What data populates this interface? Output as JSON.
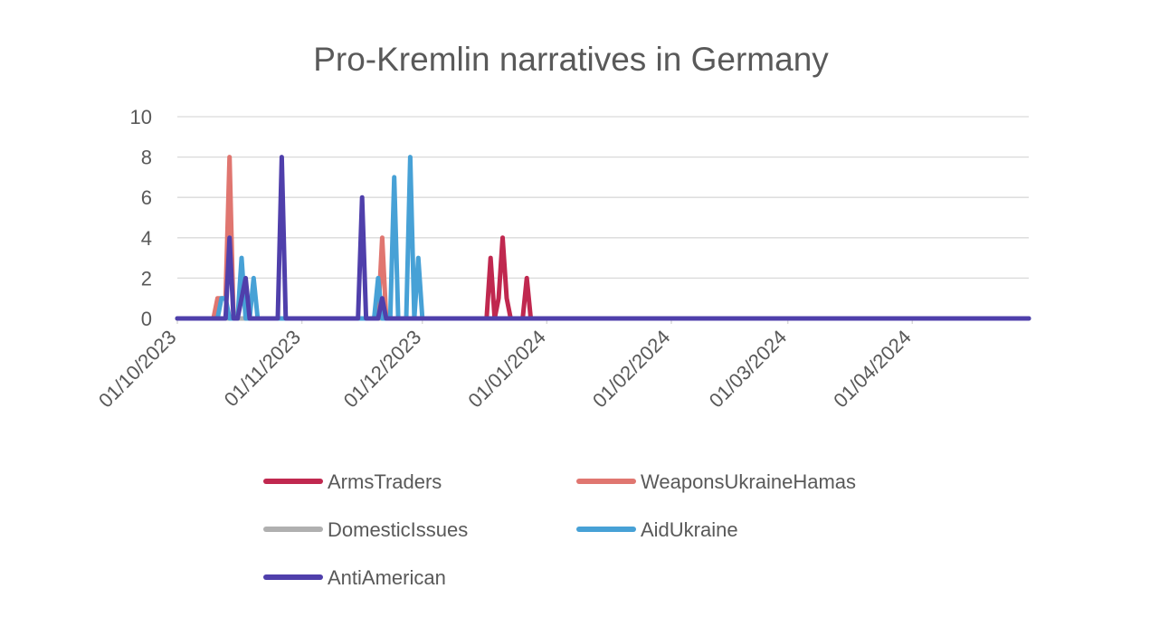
{
  "chart_data": {
    "type": "line",
    "title": "Pro-Kremlin narratives in Germany",
    "xlabel": "",
    "ylabel": "",
    "xlim": [
      "2023-10-01",
      "2024-04-30"
    ],
    "ylim": [
      0,
      10
    ],
    "y_ticks": [
      0,
      2,
      4,
      6,
      8,
      10
    ],
    "x_ticks": [
      "01/10/2023",
      "01/11/2023",
      "01/12/2023",
      "01/01/2024",
      "01/02/2024",
      "01/03/2024",
      "01/04/2024"
    ],
    "x_tick_dates": [
      "2023-10-01",
      "2023-11-01",
      "2023-12-01",
      "2024-01-01",
      "2024-02-01",
      "2024-03-01",
      "2024-04-01"
    ],
    "grid": true,
    "legend": "bottom",
    "series": [
      {
        "name": "ArmsTraders",
        "color": "#c0284f",
        "points": [
          [
            "2023-10-01",
            0
          ],
          [
            "2023-12-17",
            0
          ],
          [
            "2023-12-18",
            3
          ],
          [
            "2023-12-19",
            0
          ],
          [
            "2023-12-20",
            1
          ],
          [
            "2023-12-21",
            4
          ],
          [
            "2023-12-22",
            1
          ],
          [
            "2023-12-23",
            0
          ],
          [
            "2023-12-26",
            0
          ],
          [
            "2023-12-27",
            2
          ],
          [
            "2023-12-28",
            0
          ],
          [
            "2024-04-30",
            0
          ]
        ]
      },
      {
        "name": "WeaponsUkraineHamas",
        "color": "#e07670",
        "points": [
          [
            "2023-10-01",
            0
          ],
          [
            "2023-10-10",
            0
          ],
          [
            "2023-10-11",
            1
          ],
          [
            "2023-10-13",
            1
          ],
          [
            "2023-10-14",
            8
          ],
          [
            "2023-10-15",
            0
          ],
          [
            "2023-11-20",
            0
          ],
          [
            "2023-11-21",
            4
          ],
          [
            "2023-11-22",
            0
          ],
          [
            "2024-04-30",
            0
          ]
        ]
      },
      {
        "name": "DomesticIssues",
        "color": "#b0b0b0",
        "points": [
          [
            "2023-10-01",
            0
          ],
          [
            "2024-04-30",
            0
          ]
        ]
      },
      {
        "name": "AidUkraine",
        "color": "#47a1d6",
        "points": [
          [
            "2023-10-01",
            0
          ],
          [
            "2023-10-11",
            0
          ],
          [
            "2023-10-12",
            1
          ],
          [
            "2023-10-13",
            1
          ],
          [
            "2023-10-14",
            0
          ],
          [
            "2023-10-16",
            0
          ],
          [
            "2023-10-17",
            3
          ],
          [
            "2023-10-18",
            0
          ],
          [
            "2023-10-19",
            0
          ],
          [
            "2023-10-20",
            2
          ],
          [
            "2023-10-21",
            0
          ],
          [
            "2023-11-19",
            0
          ],
          [
            "2023-11-20",
            2
          ],
          [
            "2023-11-21",
            0
          ],
          [
            "2023-11-23",
            0
          ],
          [
            "2023-11-24",
            7
          ],
          [
            "2023-11-25",
            0
          ],
          [
            "2023-11-27",
            0
          ],
          [
            "2023-11-28",
            8
          ],
          [
            "2023-11-29",
            0
          ],
          [
            "2023-11-30",
            3
          ],
          [
            "2023-12-01",
            0
          ],
          [
            "2024-04-30",
            0
          ]
        ]
      },
      {
        "name": "AntiAmerican",
        "color": "#4f3fab",
        "points": [
          [
            "2023-10-01",
            0
          ],
          [
            "2023-10-13",
            0
          ],
          [
            "2023-10-14",
            4
          ],
          [
            "2023-10-15",
            0
          ],
          [
            "2023-10-16",
            0
          ],
          [
            "2023-10-17",
            1
          ],
          [
            "2023-10-18",
            2
          ],
          [
            "2023-10-19",
            0
          ],
          [
            "2023-10-26",
            0
          ],
          [
            "2023-10-27",
            8
          ],
          [
            "2023-10-28",
            0
          ],
          [
            "2023-11-15",
            0
          ],
          [
            "2023-11-16",
            6
          ],
          [
            "2023-11-17",
            0
          ],
          [
            "2023-11-20",
            0
          ],
          [
            "2023-11-21",
            1
          ],
          [
            "2023-11-22",
            0
          ],
          [
            "2024-04-30",
            0
          ]
        ]
      }
    ]
  }
}
